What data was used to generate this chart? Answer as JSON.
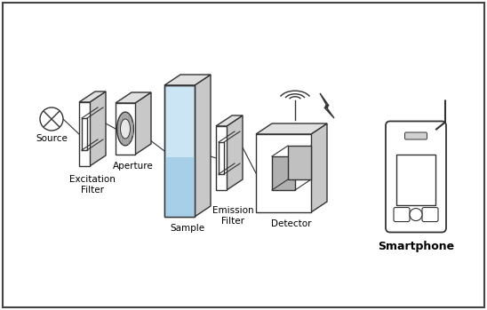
{
  "bg_color": "#ffffff",
  "border_color": "#444444",
  "line_color": "#333333",
  "line_width": 1.0,
  "sample_fill": "#cce5f5",
  "sample_fill2": "#a8cfe8",
  "gray_top": "#e0e0e0",
  "gray_right": "#c8c8c8",
  "gray_dark": "#b0b0b0",
  "labels": {
    "source": "Source",
    "excitation_filter": "Excitation\nFilter",
    "aperture": "Aperture",
    "sample": "Sample",
    "emission_filter": "Emission\nFilter",
    "detector": "Detector",
    "smartphone": "Smartphone"
  },
  "label_fontsize": 7.5
}
